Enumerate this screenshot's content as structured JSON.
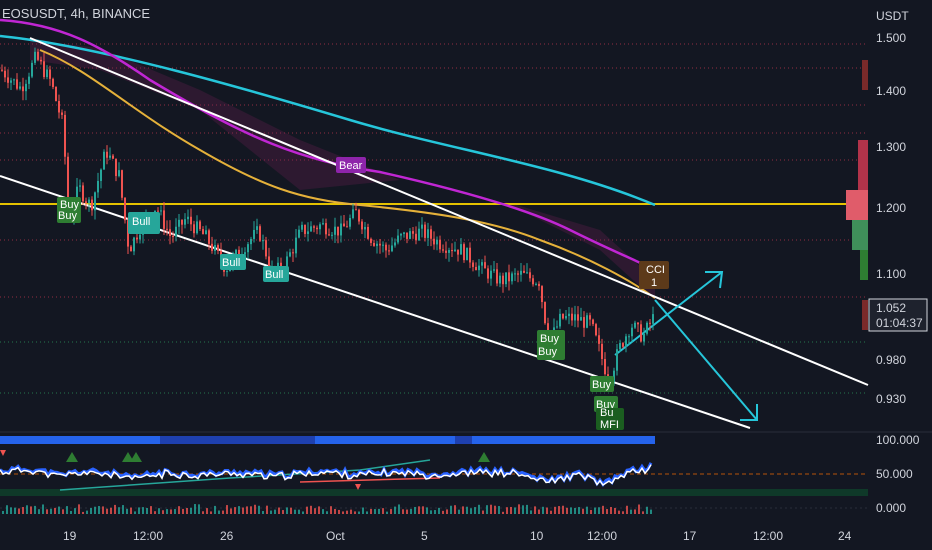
{
  "header": {
    "symbol_label": "EOSUSDT, 4h, BINANCE"
  },
  "price_axis": {
    "unit": "USDT",
    "ticks": [
      "1.500",
      "1.400",
      "1.300",
      "1.200",
      "1.100",
      "0.980",
      "0.930"
    ]
  },
  "indicator_axis": {
    "ticks": [
      "100.000",
      "50.000",
      "0.000"
    ]
  },
  "time_axis": {
    "ticks": [
      "19",
      "12:00",
      "26",
      "Oct",
      "5",
      "10",
      "12:00",
      "17",
      "12:00",
      "24"
    ]
  },
  "last_price": {
    "value": "1.052",
    "countdown": "01:04:37"
  },
  "signals": {
    "buy": "Buy",
    "bull": "Bull",
    "bear": "Bear",
    "cci_line1": "CCI",
    "cci_line2": "1",
    "mfi_partial": "Bu",
    "mfi": "MFI"
  },
  "colors": {
    "background": "#131722",
    "up": "#26a69a",
    "down": "#ef5350",
    "ema_fast": "#e5b13a",
    "ema_mid": "#c026d3",
    "ema_slow": "#26c6da",
    "horizontal_level": "#e5c200",
    "channel": "#ffffff",
    "projection": "#26c6da"
  },
  "chart_data": {
    "type": "candlestick",
    "title": "EOSUSDT, 4h, BINANCE",
    "ylabel": "USDT",
    "x_categories": [
      "19",
      "12:00",
      "26",
      "Oct",
      "5",
      "10",
      "12:00",
      "17",
      "12:00",
      "24"
    ],
    "ylim": [
      0.88,
      1.54
    ],
    "indicator_ylim": [
      0,
      100
    ],
    "key_levels": [
      {
        "name": "horizontal",
        "value": 1.2
      }
    ],
    "price_path": [
      [
        0,
        1.46
      ],
      [
        20,
        1.43
      ],
      [
        35,
        1.48
      ],
      [
        50,
        1.44
      ],
      [
        62,
        1.37
      ],
      [
        68,
        1.22
      ],
      [
        78,
        1.27
      ],
      [
        90,
        1.24
      ],
      [
        105,
        1.33
      ],
      [
        118,
        1.29
      ],
      [
        128,
        1.17
      ],
      [
        140,
        1.21
      ],
      [
        155,
        1.24
      ],
      [
        170,
        1.19
      ],
      [
        185,
        1.22
      ],
      [
        205,
        1.19
      ],
      [
        225,
        1.14
      ],
      [
        245,
        1.18
      ],
      [
        258,
        1.2
      ],
      [
        272,
        1.13
      ],
      [
        285,
        1.15
      ],
      [
        300,
        1.2
      ],
      [
        320,
        1.21
      ],
      [
        340,
        1.2
      ],
      [
        355,
        1.23
      ],
      [
        370,
        1.19
      ],
      [
        385,
        1.17
      ],
      [
        400,
        1.19
      ],
      [
        420,
        1.2
      ],
      [
        440,
        1.18
      ],
      [
        460,
        1.17
      ],
      [
        480,
        1.14
      ],
      [
        500,
        1.12
      ],
      [
        520,
        1.13
      ],
      [
        538,
        1.12
      ],
      [
        548,
        1.02
      ],
      [
        560,
        1.06
      ],
      [
        575,
        1.06
      ],
      [
        590,
        1.05
      ],
      [
        600,
        1.0
      ],
      [
        608,
        0.96
      ],
      [
        618,
        1.01
      ],
      [
        630,
        1.05
      ],
      [
        642,
        1.03
      ],
      [
        652,
        1.06
      ]
    ],
    "indicator_values": [
      [
        0,
        55
      ],
      [
        30,
        58
      ],
      [
        60,
        48
      ],
      [
        80,
        54
      ],
      [
        110,
        52
      ],
      [
        130,
        44
      ],
      [
        160,
        52
      ],
      [
        200,
        50
      ],
      [
        240,
        53
      ],
      [
        280,
        48
      ],
      [
        320,
        55
      ],
      [
        360,
        50
      ],
      [
        400,
        54
      ],
      [
        440,
        50
      ],
      [
        480,
        55
      ],
      [
        520,
        52
      ],
      [
        545,
        40
      ],
      [
        580,
        50
      ],
      [
        605,
        35
      ],
      [
        625,
        52
      ],
      [
        652,
        62
      ]
    ]
  }
}
